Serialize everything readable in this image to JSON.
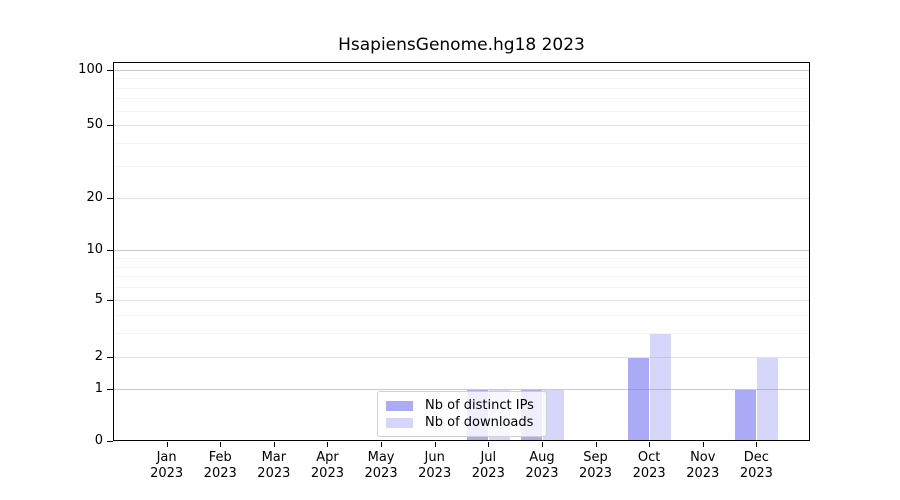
{
  "title": "HsapiensGenome.hg18 2023",
  "colors": {
    "bar_distinct_ips": "rgba(120,120,240,0.63)",
    "bar_downloads": "rgba(120,120,240,0.30)",
    "grid_strong": "#c9c9c9",
    "grid_soft": "#e2e2e2",
    "grid_minor": "#f4f4f4",
    "axis": "#000000",
    "legend_border": "#d0d0d0",
    "legend_bg": "rgba(255,255,255,0.8)"
  },
  "chart_data": {
    "type": "bar",
    "title": "HsapiensGenome.hg18 2023",
    "year": "2023",
    "months": [
      "Jan",
      "Feb",
      "Mar",
      "Apr",
      "May",
      "Jun",
      "Jul",
      "Aug",
      "Sep",
      "Oct",
      "Nov",
      "Dec"
    ],
    "categories": [
      "Jan 2023",
      "Feb 2023",
      "Mar 2023",
      "Apr 2023",
      "May 2023",
      "Jun 2023",
      "Jul 2023",
      "Aug 2023",
      "Sep 2023",
      "Oct 2023",
      "Nov 2023",
      "Dec 2023"
    ],
    "series": [
      {
        "name": "Nb of distinct IPs",
        "color": "rgba(120,120,240,0.63)",
        "values": [
          0,
          0,
          0,
          0,
          0,
          0,
          1,
          1,
          0,
          2,
          0,
          1
        ]
      },
      {
        "name": "Nb of downloads",
        "color": "rgba(120,120,240,0.30)",
        "values": [
          0,
          0,
          0,
          0,
          0,
          0,
          1,
          1,
          0,
          3,
          0,
          2
        ]
      }
    ],
    "xlabel": "",
    "ylabel": "",
    "yscale": "log1p",
    "ylim": [
      0,
      110
    ],
    "yticks": [
      0,
      1,
      2,
      5,
      10,
      20,
      50,
      100
    ],
    "yticks_emphasized": [
      1,
      10,
      100
    ],
    "yticks_minor": [
      3,
      4,
      6,
      7,
      8,
      9,
      30,
      40,
      60,
      70,
      80,
      90
    ],
    "grid": true,
    "legend_position": "lower-center"
  }
}
